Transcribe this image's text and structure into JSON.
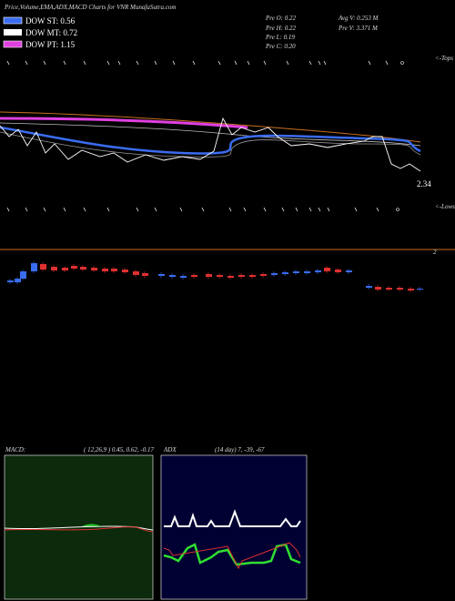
{
  "header": {
    "title": "Price,Volume,EMA,ADX,MACD Charts for VNR MunafaSutra.com"
  },
  "legend": [
    {
      "label": "DOW ST: 0.56",
      "color": "#3a6cf0"
    },
    {
      "label": "DOW MT: 0.72",
      "color": "#ffffff"
    },
    {
      "label": "DOW PT: 1.15",
      "color": "#e040e0"
    }
  ],
  "info": {
    "pre_o": "Pre  O: 0.22",
    "pre_h": "Pre  H: 0.22",
    "pre_l": "Pre  L: 0.19",
    "pre_c": "Pre  C: 0.20",
    "avg_v": "Avg V: 0.253 M",
    "pre_v": "Pre  V: 3.371 M"
  },
  "price_panel": {
    "tops_label": "<-Tops",
    "lows_label": "<-Lows",
    "last_price": "2.34",
    "volume_axis_label": "2"
  },
  "macd_panel": {
    "title": "MACD:",
    "params": "( 12,26,9 ) 0.45, 0.62, -0.17"
  },
  "adx_panel": {
    "title": "ADX",
    "params": "(14  day) 7, -39, -67"
  }
}
